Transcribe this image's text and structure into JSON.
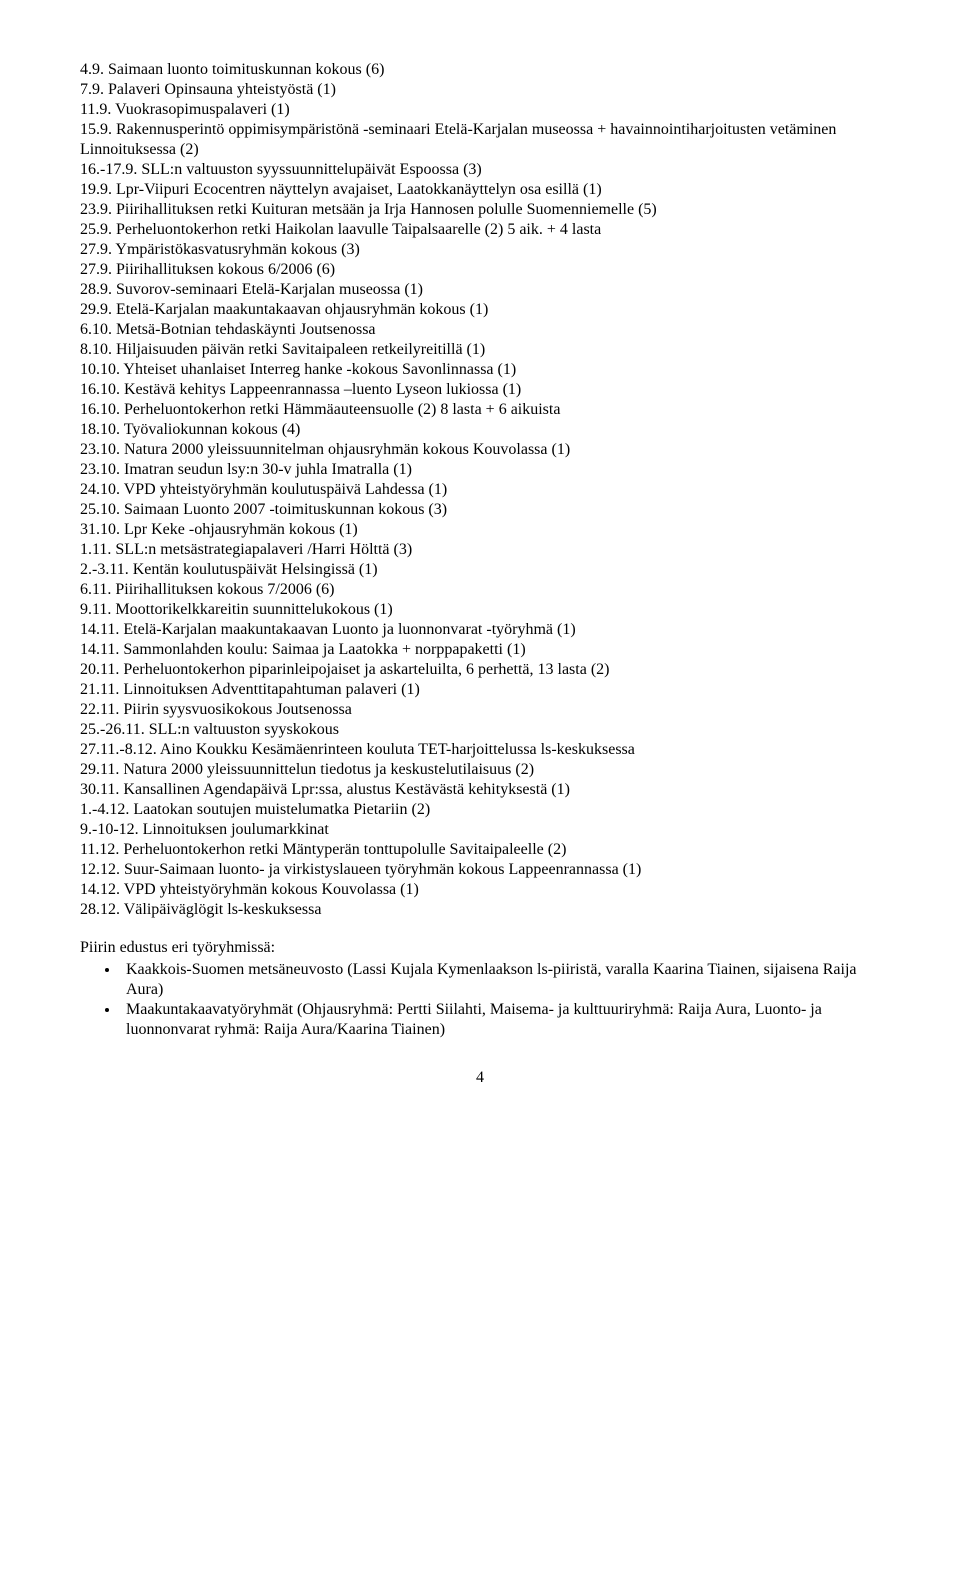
{
  "lines": [
    "4.9. Saimaan luonto toimituskunnan kokous (6)",
    "7.9. Palaveri Opinsauna yhteistyöstä (1)",
    "11.9. Vuokrasopimuspalaveri (1)",
    "15.9. Rakennusperintö oppimisympäristönä -seminaari Etelä-Karjalan museossa + havainnointiharjoitusten vetäminen Linnoituksessa (2)",
    "16.-17.9. SLL:n valtuuston syyssuunnittelupäivät Espoossa (3)",
    "19.9. Lpr-Viipuri Ecocentren näyttelyn avajaiset, Laatokkanäyttelyn osa esillä (1)",
    "23.9. Piirihallituksen retki Kuituran metsään ja Irja Hannosen polulle Suomenniemelle (5)",
    "25.9. Perheluontokerhon retki Haikolan laavulle Taipalsaarelle (2) 5 aik. + 4 lasta",
    "27.9. Ympäristökasvatusryhmän kokous (3)",
    "27.9. Piirihallituksen kokous 6/2006 (6)",
    "28.9. Suvorov-seminaari Etelä-Karjalan museossa (1)",
    "29.9. Etelä-Karjalan maakuntakaavan ohjausryhmän kokous (1)",
    "6.10. Metsä-Botnian tehdaskäynti Joutsenossa",
    "8.10. Hiljaisuuden päivän retki Savitaipaleen retkeilyreitillä (1)",
    "10.10. Yhteiset uhanlaiset Interreg hanke -kokous Savonlinnassa (1)",
    "16.10. Kestävä kehitys Lappeenrannassa –luento Lyseon lukiossa (1)",
    "16.10. Perheluontokerhon retki Hämmäauteensuolle (2) 8 lasta + 6 aikuista",
    "18.10. Työvaliokunnan kokous (4)",
    "23.10. Natura 2000 yleissuunnitelman ohjausryhmän kokous Kouvolassa (1)",
    "23.10. Imatran seudun lsy:n 30-v juhla Imatralla (1)",
    "24.10. VPD yhteistyöryhmän koulutuspäivä Lahdessa (1)",
    "25.10. Saimaan Luonto 2007 -toimituskunnan kokous (3)",
    "31.10. Lpr Keke -ohjausryhmän kokous (1)",
    "1.11. SLL:n metsästrategiapalaveri /Harri Hölttä (3)",
    "2.-3.11. Kentän koulutuspäivät Helsingissä (1)",
    "6.11. Piirihallituksen kokous 7/2006 (6)",
    "9.11. Moottorikelkkareitin suunnittelukokous (1)",
    "14.11. Etelä-Karjalan maakuntakaavan Luonto ja luonnonvarat -työryhmä (1)",
    "14.11. Sammonlahden koulu: Saimaa ja Laatokka + norppapaketti (1)",
    "20.11. Perheluontokerhon piparinleipojaiset ja askarteluilta, 6 perhettä, 13 lasta (2)",
    "21.11. Linnoituksen Adventtitapahtuman palaveri (1)",
    "22.11. Piirin syysvuosikokous Joutsenossa",
    "25.-26.11. SLL:n valtuuston syyskokous",
    "27.11.-8.12. Aino Koukku Kesämäenrinteen kouluta TET-harjoittelussa ls-keskuksessa",
    "29.11. Natura 2000 yleissuunnittelun tiedotus ja keskustelutilaisuus (2)",
    "30.11. Kansallinen Agendapäivä Lpr:ssa, alustus Kestävästä kehityksestä (1)",
    "1.-4.12. Laatokan soutujen muistelumatka Pietariin (2)",
    "9.-10-12. Linnoituksen joulumarkkinat",
    "11.12. Perheluontokerhon retki Mäntyperän tonttupolulle Savitaipaleelle (2)",
    "12.12. Suur-Saimaan luonto- ja virkistyslaueen työryhmän kokous Lappeenrannassa (1)",
    "14.12. VPD yhteistyöryhmän kokous Kouvolassa (1)",
    "28.12. Välipäiväglögit ls-keskuksessa"
  ],
  "subheading": "Piirin edustus eri työryhmissä:",
  "bullets": [
    "Kaakkois-Suomen metsäneuvosto (Lassi Kujala Kymenlaakson ls-piiristä, varalla Kaarina Tiainen, sijaisena Raija Aura)",
    "Maakuntakaavatyöryhmät (Ohjausryhmä: Pertti Siilahti, Maisema- ja kulttuuriryhmä: Raija Aura, Luonto- ja luonnonvarat ryhmä: Raija Aura/Kaarina Tiainen)"
  ],
  "page_number": "4"
}
